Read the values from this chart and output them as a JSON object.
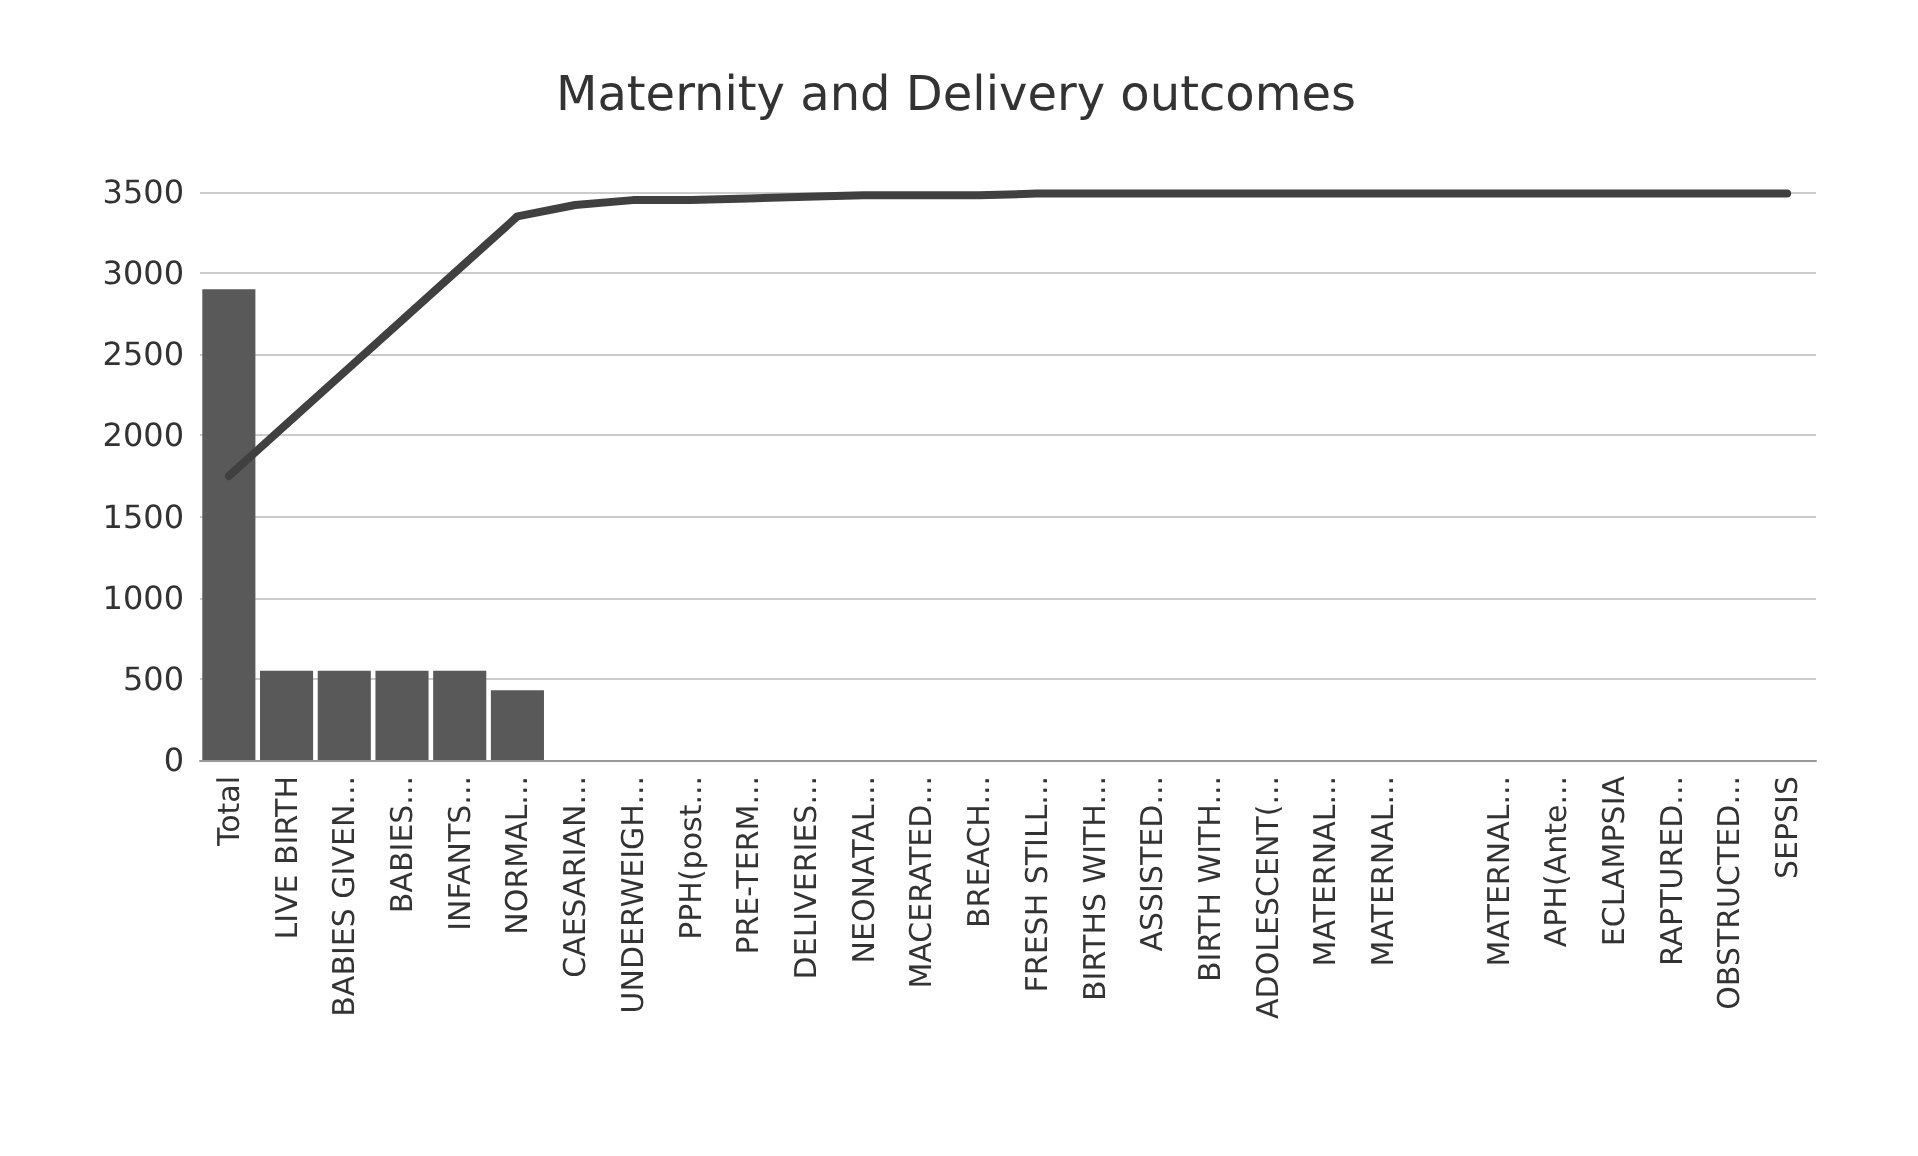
{
  "chart_data": {
    "type": "bar",
    "title": "Maternity and Delivery outcomes",
    "categories": [
      "Total",
      "LIVE BIRTH",
      "BABIES GIVEN...",
      "BABIES...",
      "INFANTS...",
      "NORMAL...",
      "CAESARIAN...",
      "UNDERWEIGH...",
      "PPH(post...",
      "PRE-TERM...",
      "DELIVERIES...",
      "NEONATAL...",
      "MACERATED...",
      "BREACH...",
      "FRESH STILL...",
      "BIRTHS WITH...",
      "ASSISTED...",
      "BIRTH WITH...",
      "ADOLESCENT(...",
      "MATERNAL...",
      "MATERNAL...",
      null,
      "MATERNAL...",
      "APH(Ante...",
      "ECLAMPSIA",
      "RAPTURED...",
      "OBSTRUCTED...",
      "SEPSIS"
    ],
    "series": [
      {
        "color": "#595959",
        "values": [
          2900,
          550,
          550,
          550,
          550,
          430,
          0,
          0,
          0,
          0,
          0,
          0,
          0,
          0,
          0,
          0,
          0,
          0,
          0,
          0,
          0,
          0,
          0,
          0,
          0,
          0,
          0,
          0
        ]
      },
      {
        "type": "line",
        "color": "#404040",
        "values": [
          1750,
          2070,
          2390,
          2710,
          3030,
          3350,
          3420,
          3450,
          3450,
          3460,
          3470,
          3480,
          3480,
          3480,
          3490,
          3490,
          3490,
          3490,
          3490,
          3490,
          3490,
          3490,
          3490,
          3490,
          3490,
          3490,
          3490,
          3490
        ]
      }
    ],
    "ylim": [
      0,
      3500
    ],
    "yticks": [
      0,
      500,
      1000,
      1500,
      2000,
      2500,
      3000,
      3500
    ],
    "grid": "y",
    "marker": "none"
  }
}
